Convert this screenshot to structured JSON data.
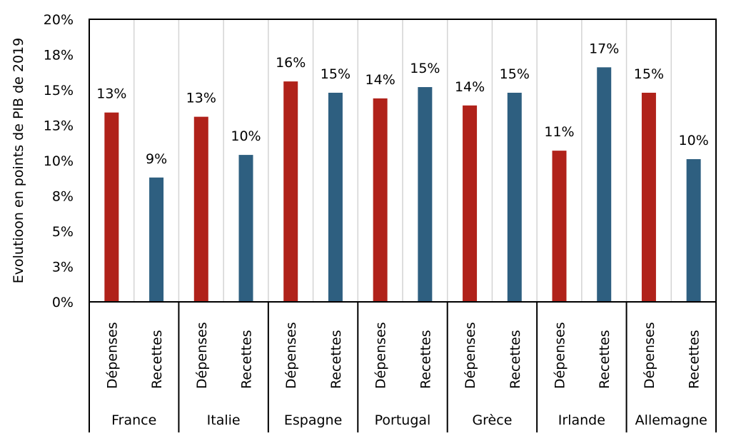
{
  "chart_data": {
    "type": "bar",
    "title": "",
    "ylabel": "Evolutioon en points de PIB de 2019",
    "xlabel": "",
    "ylim": [
      0,
      20
    ],
    "yticks": [
      0,
      2.5,
      5,
      7.5,
      10,
      12.5,
      15,
      17.5,
      20
    ],
    "ytick_labels": [
      "0%",
      "3%",
      "5%",
      "8%",
      "10%",
      "13%",
      "15%",
      "18%",
      "20%"
    ],
    "grid": "vertical category separators",
    "groups": [
      {
        "country": "France",
        "bars": [
          {
            "label": "Dépenses",
            "value": 13.4,
            "data_label": "13%"
          },
          {
            "label": "Recettes",
            "value": 8.8,
            "data_label": "9%"
          }
        ]
      },
      {
        "country": "Italie",
        "bars": [
          {
            "label": "Dépenses",
            "value": 13.1,
            "data_label": "13%"
          },
          {
            "label": "Recettes",
            "value": 10.4,
            "data_label": "10%"
          }
        ]
      },
      {
        "country": "Espagne",
        "bars": [
          {
            "label": "Dépenses",
            "value": 15.6,
            "data_label": "16%"
          },
          {
            "label": "Recettes",
            "value": 14.8,
            "data_label": "15%"
          }
        ]
      },
      {
        "country": "Portugal",
        "bars": [
          {
            "label": "Dépenses",
            "value": 14.4,
            "data_label": "14%"
          },
          {
            "label": "Recettes",
            "value": 15.2,
            "data_label": "15%"
          }
        ]
      },
      {
        "country": "Grèce",
        "bars": [
          {
            "label": "Dépenses",
            "value": 13.9,
            "data_label": "14%"
          },
          {
            "label": "Recettes",
            "value": 14.8,
            "data_label": "15%"
          }
        ]
      },
      {
        "country": "Irlande",
        "bars": [
          {
            "label": "Dépenses",
            "value": 10.7,
            "data_label": "11%"
          },
          {
            "label": "Recettes",
            "value": 16.6,
            "data_label": "17%"
          }
        ]
      },
      {
        "country": "Allemagne",
        "bars": [
          {
            "label": "Dépenses",
            "value": 14.8,
            "data_label": "15%"
          },
          {
            "label": "Recettes",
            "value": 10.1,
            "data_label": "10%"
          }
        ]
      }
    ],
    "colors": {
      "Dépenses": "#b0221a",
      "Recettes": "#2e5f80"
    }
  }
}
